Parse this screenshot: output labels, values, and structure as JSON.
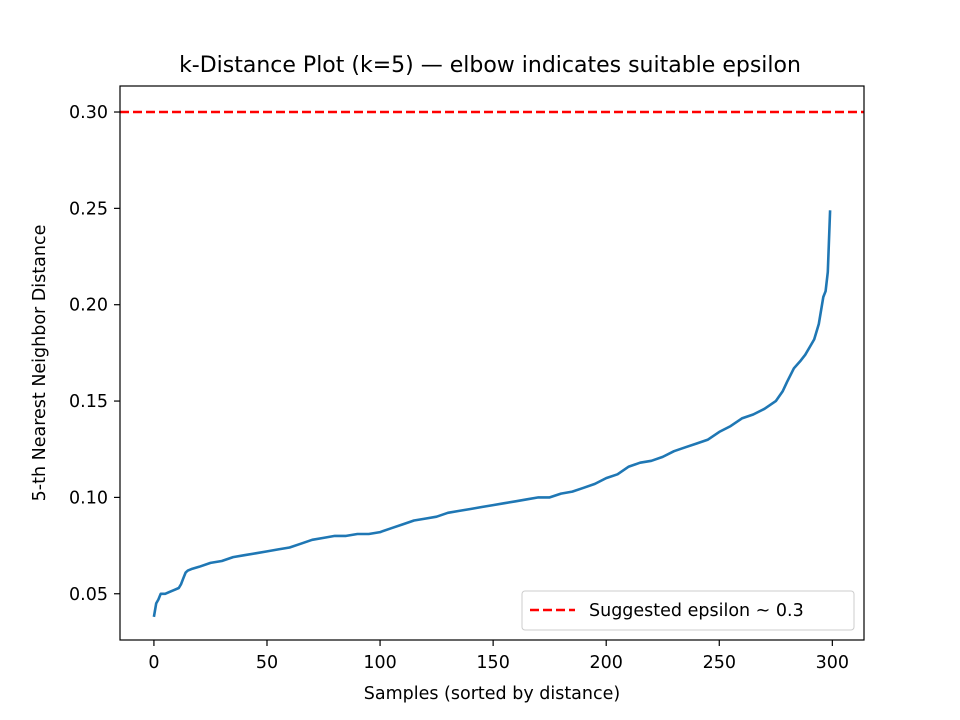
{
  "chart_data": {
    "type": "line",
    "title": "k-Distance Plot (k=5) — elbow indicates suitable epsilon",
    "xlabel": "Samples (sorted by distance)",
    "ylabel": "5-th Nearest Neighbor Distance",
    "xlim": [
      -15,
      314
    ],
    "ylim": [
      0.026,
      0.3135
    ],
    "x_ticks": [
      0,
      50,
      100,
      150,
      200,
      250,
      300
    ],
    "y_ticks": [
      0.05,
      0.1,
      0.15,
      0.2,
      0.25,
      0.3
    ],
    "x_tick_labels": [
      "0",
      "50",
      "100",
      "150",
      "200",
      "250",
      "300"
    ],
    "y_tick_labels": [
      "0.05",
      "0.10",
      "0.15",
      "0.20",
      "0.25",
      "0.30"
    ],
    "grid": false,
    "legend_position": "lower right",
    "series": [
      {
        "kind": "line",
        "color": "#1f77b4",
        "x": [
          0,
          1,
          2,
          3,
          5,
          7,
          9,
          11,
          12,
          13,
          14,
          15,
          17,
          20,
          25,
          30,
          35,
          40,
          45,
          50,
          55,
          60,
          65,
          70,
          75,
          80,
          85,
          90,
          95,
          100,
          105,
          110,
          115,
          120,
          125,
          130,
          135,
          140,
          145,
          150,
          155,
          160,
          165,
          170,
          175,
          180,
          185,
          190,
          195,
          200,
          205,
          210,
          215,
          220,
          225,
          230,
          235,
          240,
          245,
          250,
          255,
          260,
          265,
          270,
          275,
          278,
          280,
          283,
          286,
          288,
          290,
          292,
          294,
          296,
          297,
          298,
          299
        ],
        "y": [
          0.038,
          0.045,
          0.047,
          0.05,
          0.05,
          0.051,
          0.052,
          0.053,
          0.055,
          0.058,
          0.061,
          0.062,
          0.063,
          0.064,
          0.066,
          0.067,
          0.069,
          0.07,
          0.071,
          0.072,
          0.073,
          0.074,
          0.076,
          0.078,
          0.079,
          0.08,
          0.08,
          0.081,
          0.081,
          0.082,
          0.084,
          0.086,
          0.088,
          0.089,
          0.09,
          0.092,
          0.093,
          0.094,
          0.095,
          0.096,
          0.097,
          0.098,
          0.099,
          0.1,
          0.1,
          0.102,
          0.103,
          0.105,
          0.107,
          0.11,
          0.112,
          0.116,
          0.118,
          0.119,
          0.121,
          0.124,
          0.126,
          0.128,
          0.13,
          0.134,
          0.137,
          0.141,
          0.143,
          0.146,
          0.15,
          0.155,
          0.16,
          0.167,
          0.171,
          0.174,
          0.178,
          0.182,
          0.19,
          0.204,
          0.207,
          0.217,
          0.249
        ]
      },
      {
        "kind": "hline",
        "name": "Suggested epsilon ~ 0.3",
        "y": 0.3,
        "color": "#ff0000",
        "style": "dashed"
      }
    ]
  }
}
